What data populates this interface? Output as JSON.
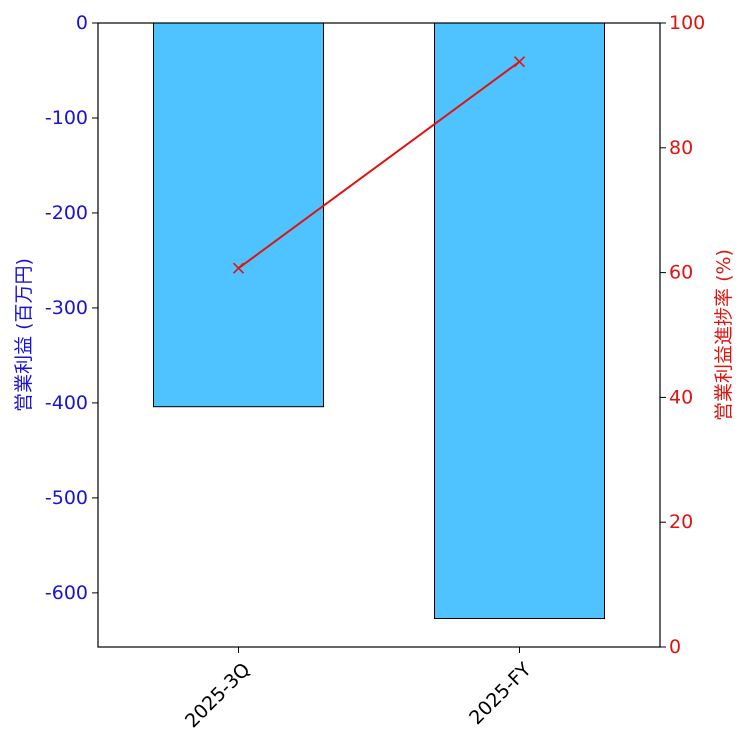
{
  "chart_data": {
    "type": "bar",
    "categories": [
      "2025-3Q",
      "2025-FY"
    ],
    "bar_series": {
      "values": [
        -404,
        -627
      ],
      "color": "#4fc3ff",
      "edge_color": "#000000"
    },
    "line_series": {
      "values": [
        60.7,
        93.8
      ],
      "color": "#e0140f",
      "marker": "x"
    },
    "y_left": {
      "label": "営業利益 (百万円)",
      "ylim": [
        -657,
        0
      ],
      "ticks": [
        0,
        -100,
        -200,
        -300,
        -400,
        -500,
        -600
      ],
      "tick_labels": [
        "0",
        "-100",
        "-200",
        "-300",
        "-400",
        "-500",
        "-600"
      ],
      "color": "#1a12d6"
    },
    "y_right": {
      "label": "営業利益進捗率 (%)",
      "ylim": [
        0,
        100
      ],
      "ticks": [
        0,
        20,
        40,
        60,
        80,
        100
      ],
      "tick_labels": [
        "0",
        "20",
        "40",
        "60",
        "80",
        "100"
      ],
      "color": "#e0140f"
    },
    "grid": false,
    "legend": "none"
  }
}
